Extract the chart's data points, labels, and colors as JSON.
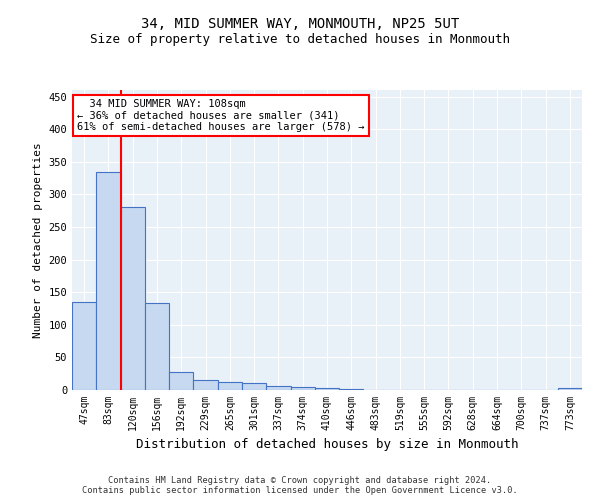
{
  "title": "34, MID SUMMER WAY, MONMOUTH, NP25 5UT",
  "subtitle": "Size of property relative to detached houses in Monmouth",
  "xlabel": "Distribution of detached houses by size in Monmouth",
  "ylabel": "Number of detached properties",
  "categories": [
    "47sqm",
    "83sqm",
    "120sqm",
    "156sqm",
    "192sqm",
    "229sqm",
    "265sqm",
    "301sqm",
    "337sqm",
    "374sqm",
    "410sqm",
    "446sqm",
    "483sqm",
    "519sqm",
    "555sqm",
    "592sqm",
    "628sqm",
    "664sqm",
    "700sqm",
    "737sqm",
    "773sqm"
  ],
  "values": [
    135,
    335,
    280,
    133,
    27,
    15,
    12,
    10,
    6,
    5,
    3,
    1,
    0,
    0,
    0,
    0,
    0,
    0,
    0,
    0,
    3
  ],
  "bar_color": "#c6d9f0",
  "bar_edge_color": "#4472c4",
  "bar_linewidth": 0.8,
  "property_line_x": 1.5,
  "annotation_text": "  34 MID SUMMER WAY: 108sqm\n← 36% of detached houses are smaller (341)\n61% of semi-detached houses are larger (578) →",
  "annotation_box_color": "white",
  "annotation_box_edge_color": "red",
  "property_line_color": "red",
  "ylim": [
    0,
    460
  ],
  "yticks": [
    0,
    50,
    100,
    150,
    200,
    250,
    300,
    350,
    400,
    450
  ],
  "background_color": "#e8f0f8",
  "grid_color": "white",
  "footer_line1": "Contains HM Land Registry data © Crown copyright and database right 2024.",
  "footer_line2": "Contains public sector information licensed under the Open Government Licence v3.0.",
  "title_fontsize": 10,
  "subtitle_fontsize": 9,
  "axis_label_fontsize": 8,
  "tick_fontsize": 7,
  "annotation_fontsize": 7.5
}
